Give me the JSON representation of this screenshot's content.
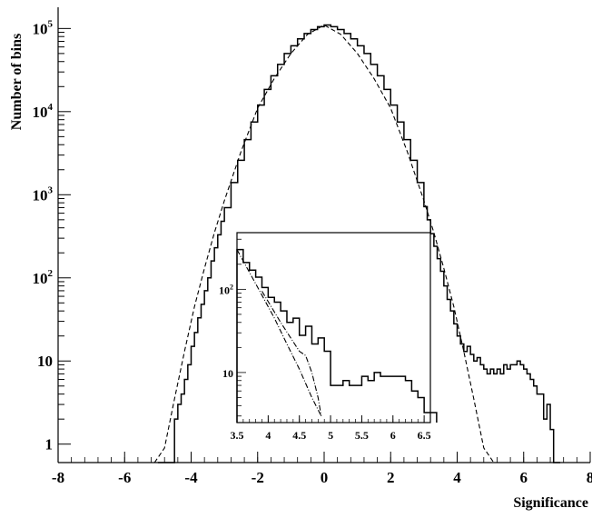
{
  "chart_data": [
    {
      "type": "histogram",
      "xlabel": "Significance",
      "ylabel": "Number of bins",
      "xlim": [
        -8,
        8
      ],
      "ylim": [
        0.6,
        180000
      ],
      "yscale": "log",
      "x_tick_labels": [
        "-8",
        "-6",
        "-4",
        "-2",
        "0",
        "2",
        "4",
        "6",
        "8"
      ],
      "y_tick_labels": [
        {
          "value": 1,
          "base": "1",
          "exp": ""
        },
        {
          "value": 10,
          "base": "10",
          "exp": ""
        },
        {
          "value": 100,
          "base": "10",
          "exp": "2"
        },
        {
          "value": 1000,
          "base": "10",
          "exp": "3"
        },
        {
          "value": 10000,
          "base": "10",
          "exp": "4"
        },
        {
          "value": 100000,
          "base": "10",
          "exp": "5"
        }
      ],
      "grid": false,
      "series": [
        {
          "style": "solid-step",
          "x": [
            -5.0,
            -4.9,
            -4.8,
            -4.7,
            -4.6,
            -4.5,
            -4.4,
            -4.3,
            -4.2,
            -4.1,
            -4.0,
            -3.9,
            -3.8,
            -3.7,
            -3.6,
            -3.5,
            -3.4,
            -3.3,
            -3.2,
            -3.1,
            -3.0,
            -2.8,
            -2.6,
            -2.4,
            -2.2,
            -2.0,
            -1.8,
            -1.6,
            -1.4,
            -1.2,
            -1.0,
            -0.8,
            -0.6,
            -0.4,
            -0.2,
            0.0,
            0.2,
            0.4,
            0.6,
            0.8,
            1.0,
            1.2,
            1.4,
            1.6,
            1.8,
            2.0,
            2.2,
            2.4,
            2.6,
            2.8,
            3.0,
            3.1,
            3.2,
            3.3,
            3.4,
            3.5,
            3.6,
            3.7,
            3.8,
            3.9,
            4.0,
            4.1,
            4.2,
            4.3,
            4.4,
            4.5,
            4.6,
            4.7,
            4.8,
            4.9,
            5.0,
            5.1,
            5.2,
            5.3,
            5.4,
            5.5,
            5.6,
            5.7,
            5.8,
            5.9,
            6.0,
            6.1,
            6.2,
            6.3,
            6.4,
            6.5,
            6.6,
            6.7,
            6.8,
            6.9,
            7.0
          ],
          "y": [
            0.4,
            0.4,
            0.4,
            0.4,
            0.4,
            2,
            3,
            4,
            6,
            9,
            15,
            22,
            33,
            48,
            70,
            100,
            160,
            230,
            330,
            480,
            700,
            1400,
            2600,
            4600,
            7500,
            12000,
            18500,
            27000,
            37000,
            50000,
            62000,
            75000,
            87000,
            97000,
            105000,
            110000,
            105000,
            97000,
            87000,
            75000,
            62000,
            50000,
            37000,
            27000,
            18500,
            12000,
            7500,
            4600,
            2600,
            1400,
            720,
            500,
            340,
            240,
            170,
            120,
            80,
            55,
            40,
            28,
            20,
            16,
            13,
            15,
            12,
            10,
            11,
            9,
            8,
            7,
            8,
            7,
            8,
            7,
            9,
            8,
            9,
            9,
            10,
            9,
            8,
            7,
            6,
            5,
            4,
            4,
            2,
            3,
            1.5,
            0.4,
            0.4
          ]
        },
        {
          "style": "dashed",
          "x": [
            -5.1,
            -4.8,
            -4.5,
            -4.2,
            -3.9,
            -3.6,
            -3.3,
            -3.0,
            -2.5,
            -2.0,
            -1.5,
            -1.0,
            -0.5,
            0.0,
            0.5,
            1.0,
            1.5,
            2.0,
            2.5,
            3.0,
            3.3,
            3.6,
            3.9,
            4.2,
            4.5,
            4.8,
            5.1
          ],
          "y": [
            0.4,
            0.9,
            3.5,
            13,
            45,
            130,
            350,
            850,
            3300,
            11000,
            25000,
            50000,
            85000,
            110000,
            85000,
            50000,
            25000,
            11000,
            3300,
            850,
            350,
            130,
            45,
            13,
            3.5,
            0.9,
            0.4
          ]
        }
      ]
    },
    {
      "type": "histogram",
      "role": "inset",
      "xlim": [
        3.5,
        6.6
      ],
      "ylim": [
        2.5,
        480
      ],
      "yscale": "log",
      "x_tick_labels": [
        "3.5",
        "4",
        "4.5",
        "5",
        "5.5",
        "6",
        "6.5"
      ],
      "y_tick_labels": [
        {
          "value": 10,
          "base": "10",
          "exp": ""
        },
        {
          "value": 100,
          "base": "10",
          "exp": "2"
        }
      ],
      "series": [
        {
          "style": "solid-step",
          "x": [
            3.5,
            3.6,
            3.7,
            3.8,
            3.9,
            4.0,
            4.1,
            4.2,
            4.3,
            4.4,
            4.5,
            4.6,
            4.7,
            4.8,
            4.9,
            5.0,
            5.1,
            5.2,
            5.3,
            5.4,
            5.5,
            5.6,
            5.7,
            5.8,
            5.9,
            6.0,
            6.1,
            6.2,
            6.3,
            6.4,
            6.5,
            6.6
          ],
          "y": [
            300,
            210,
            170,
            140,
            105,
            80,
            70,
            55,
            40,
            45,
            28,
            36,
            22,
            26,
            18,
            7,
            7,
            8,
            7,
            7,
            9,
            8,
            10,
            9,
            9,
            9,
            9,
            8,
            6,
            5,
            3.3,
            3.3
          ]
        },
        {
          "style": "dashdot",
          "x": [
            3.5,
            3.7,
            3.9,
            4.1,
            4.3,
            4.5,
            4.7,
            4.85
          ],
          "y": [
            300,
            160,
            85,
            45,
            22,
            11,
            5,
            3
          ]
        },
        {
          "style": "dashdot",
          "x": [
            3.9,
            4.2,
            4.5,
            4.6,
            4.7,
            4.8,
            4.85
          ],
          "y": [
            95,
            40,
            18,
            16,
            10,
            5,
            3
          ]
        }
      ]
    }
  ]
}
